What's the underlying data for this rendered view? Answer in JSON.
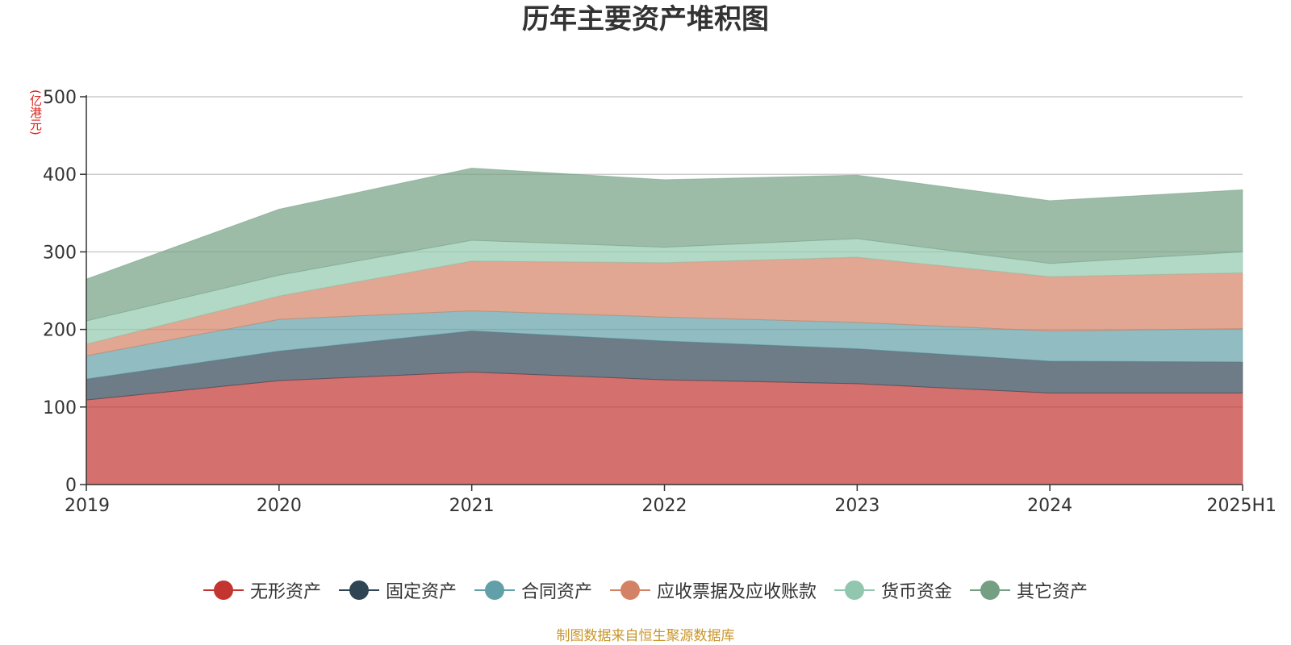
{
  "chart_data": {
    "type": "area",
    "stacked": true,
    "title": "历年主要资产堆积图",
    "ylabel": "(亿港元)",
    "categories": [
      "2019",
      "2020",
      "2021",
      "2022",
      "2023",
      "2024",
      "2025H1"
    ],
    "ylim": [
      0,
      500
    ],
    "yticks": [
      0,
      100,
      200,
      300,
      400,
      500
    ],
    "grid": true,
    "legend_position": "bottom",
    "series": [
      {
        "name": "无形资产",
        "color": "#c23531",
        "values": [
          109,
          134,
          145,
          135,
          130,
          118,
          118
        ]
      },
      {
        "name": "固定资产",
        "color": "#2f4554",
        "values": [
          27,
          38,
          53,
          50,
          45,
          41,
          40
        ]
      },
      {
        "name": "合同资产",
        "color": "#61a0a8",
        "values": [
          30,
          41,
          26,
          31,
          34,
          39,
          43
        ]
      },
      {
        "name": "应收票据及应收账款",
        "color": "#d48265",
        "values": [
          15,
          30,
          64,
          70,
          84,
          70,
          72
        ]
      },
      {
        "name": "货币资金",
        "color": "#91c7ae",
        "values": [
          30,
          27,
          27,
          20,
          24,
          17,
          27
        ]
      },
      {
        "name": "其它资产",
        "color": "#749f83",
        "values": [
          54,
          85,
          93,
          87,
          82,
          81,
          80
        ]
      }
    ],
    "source_note": "制图数据来自恒生聚源数据库"
  }
}
